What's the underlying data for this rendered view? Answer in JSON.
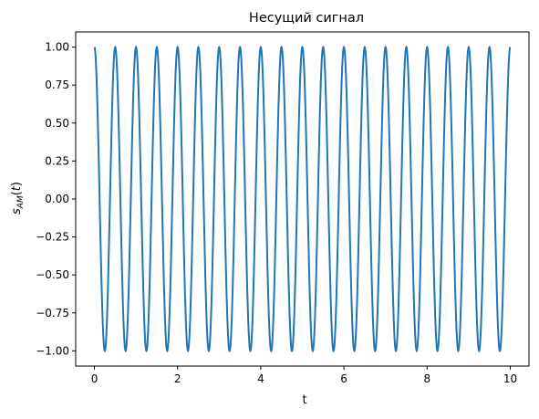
{
  "chart_data": {
    "type": "line",
    "title": "Несущий сигнал",
    "xlabel": "t",
    "ylabel": "s_AM(t)",
    "xlim": [
      -0.45,
      10.45
    ],
    "ylim": [
      -1.1,
      1.1
    ],
    "xticks": [
      0,
      2,
      4,
      6,
      8,
      10
    ],
    "xtick_labels": [
      "0",
      "2",
      "4",
      "6",
      "8",
      "10"
    ],
    "yticks": [
      1.0,
      0.75,
      0.5,
      0.25,
      0.0,
      -0.25,
      -0.5,
      -0.75,
      -1.0
    ],
    "ytick_labels": [
      "1.00",
      "0.75",
      "0.50",
      "0.25",
      "0.00",
      "−0.25",
      "−0.50",
      "−0.75",
      "−1.00"
    ],
    "grid": false,
    "series": [
      {
        "function": "cos(2*pi*f*t)",
        "frequency": 2,
        "t_range": [
          0,
          10
        ],
        "color": "#1f77b4"
      }
    ]
  }
}
